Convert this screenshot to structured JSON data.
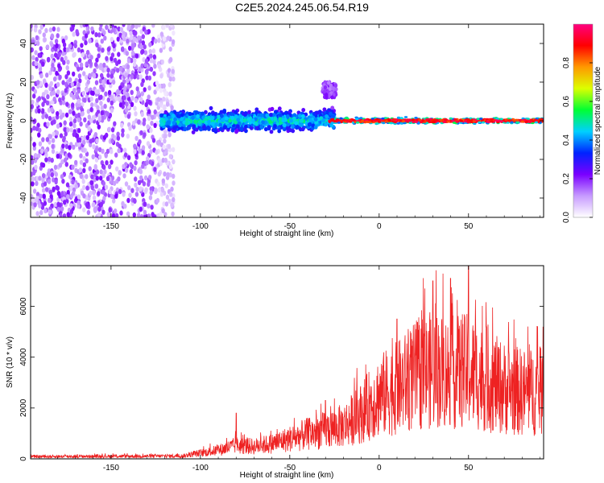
{
  "figure_title": "C2E5.2024.245.06.54.R19",
  "chart_data": [
    {
      "type": "heatmap",
      "xlabel": "Height of straight line (km)",
      "ylabel": "Frequency (Hz)",
      "xlim": [
        -195,
        92
      ],
      "ylim": [
        -50,
        50
      ],
      "x_ticks": [
        -150,
        -100,
        -50,
        0,
        50
      ],
      "y_ticks": [
        -40,
        -20,
        0,
        20,
        40
      ],
      "colorbar": {
        "label": "Normalized spectral amplitude",
        "range": [
          0,
          1
        ],
        "ticks": [
          "0.0",
          "0.2",
          "0.4",
          "0.6",
          "0.8"
        ],
        "colors": [
          "#ffffff",
          "#c79bff",
          "#7a00ff",
          "#0022ff",
          "#00d0ff",
          "#00ff33",
          "#dcff00",
          "#ff9900",
          "#ff0000",
          "#ff0080"
        ]
      },
      "regions": [
        {
          "x_from": -195,
          "x_to": -120,
          "pattern": "scattered weak energy across all frequencies"
        },
        {
          "x_from": -120,
          "x_to": -25,
          "pattern": "band around 0 Hz, width ~ +/-8 Hz, amplitude 0.2-0.5"
        },
        {
          "x_from": -25,
          "x_to": 92,
          "pattern": "narrow line at 0 Hz, amplitude 0.8-1.0"
        }
      ]
    },
    {
      "type": "line",
      "xlabel": "Height of straight line (km)",
      "ylabel": "SNR (10 * v/v)",
      "xlim": [
        -195,
        92
      ],
      "ylim": [
        0,
        7600
      ],
      "x_ticks": [
        -150,
        -100,
        -50,
        0,
        50
      ],
      "y_ticks": [
        0,
        2000,
        4000,
        6000
      ],
      "series": [
        {
          "color": "#ee2222",
          "envelope_x": [
            -195,
            -110,
            -100,
            -90,
            -80,
            -70,
            -60,
            -50,
            -40,
            -30,
            -20,
            -10,
            0,
            10,
            20,
            30,
            40,
            50,
            60,
            70,
            80,
            92
          ],
          "envelope_y": [
            120,
            150,
            300,
            450,
            700,
            650,
            800,
            1050,
            1300,
            1500,
            1750,
            2400,
            3300,
            3700,
            4300,
            4700,
            4500,
            4600,
            4100,
            3700,
            3500,
            3500
          ],
          "peak_x": [
            -80,
            -30,
            10,
            30,
            40,
            50,
            60
          ],
          "peak_y": [
            1800,
            2300,
            5500,
            7000,
            7100,
            7700,
            5200
          ]
        }
      ]
    }
  ]
}
